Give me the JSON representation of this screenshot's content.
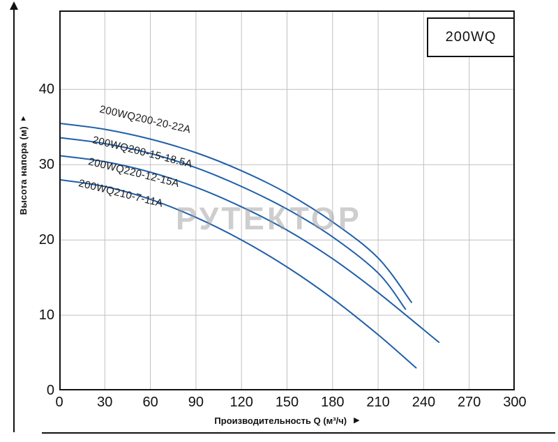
{
  "legend_box": "200WQ",
  "watermark": "РУТЕКТОР",
  "axes": {
    "y_label": "Высота напора (м)",
    "x_label": "Производительность Q (м³/ч)",
    "x_ticks": [
      0,
      30,
      60,
      90,
      120,
      150,
      180,
      210,
      240,
      270,
      300
    ],
    "y_ticks": [
      0,
      10,
      20,
      30,
      40
    ]
  },
  "chart_data": {
    "type": "line",
    "title": "200WQ",
    "xlabel": "Производительность Q (м³/ч)",
    "ylabel": "Высота напора (м)",
    "xlim": [
      0,
      300
    ],
    "ylim": [
      0,
      50.5
    ],
    "grid": true,
    "legend_position": "top-right",
    "grid_color": "#c0c0c0",
    "line_color": "#1f5fa9",
    "series": [
      {
        "name": "200WQ200-20-22A",
        "points": [
          [
            0,
            35.5
          ],
          [
            30,
            34.7
          ],
          [
            60,
            33.4
          ],
          [
            90,
            31.6
          ],
          [
            120,
            29.2
          ],
          [
            150,
            26.2
          ],
          [
            180,
            22.4
          ],
          [
            210,
            17.6
          ],
          [
            232,
            11.7
          ]
        ]
      },
      {
        "name": "200WQ200-15-18.5A",
        "points": [
          [
            0,
            33.6
          ],
          [
            30,
            32.8
          ],
          [
            60,
            31.5
          ],
          [
            90,
            29.6
          ],
          [
            120,
            27.1
          ],
          [
            150,
            24.1
          ],
          [
            180,
            20.4
          ],
          [
            210,
            15.6
          ],
          [
            228,
            10.8
          ]
        ]
      },
      {
        "name": "200WQ220-12-15A",
        "points": [
          [
            0,
            31.2
          ],
          [
            30,
            30.4
          ],
          [
            60,
            29.0
          ],
          [
            90,
            27.0
          ],
          [
            120,
            24.4
          ],
          [
            150,
            21.3
          ],
          [
            180,
            17.5
          ],
          [
            210,
            13.0
          ],
          [
            250,
            6.4
          ]
        ]
      },
      {
        "name": "200WQ210-7-11A",
        "points": [
          [
            0,
            28.0
          ],
          [
            30,
            27.1
          ],
          [
            60,
            25.4
          ],
          [
            90,
            23.0
          ],
          [
            120,
            20.0
          ],
          [
            150,
            16.4
          ],
          [
            180,
            12.2
          ],
          [
            210,
            7.4
          ],
          [
            235,
            3.0
          ]
        ]
      }
    ],
    "label_placements": [
      {
        "x": 143,
        "y": 148,
        "angle": 13
      },
      {
        "x": 133,
        "y": 192,
        "angle": 14
      },
      {
        "x": 127,
        "y": 223,
        "angle": 14
      },
      {
        "x": 113,
        "y": 254,
        "angle": 14
      }
    ]
  }
}
